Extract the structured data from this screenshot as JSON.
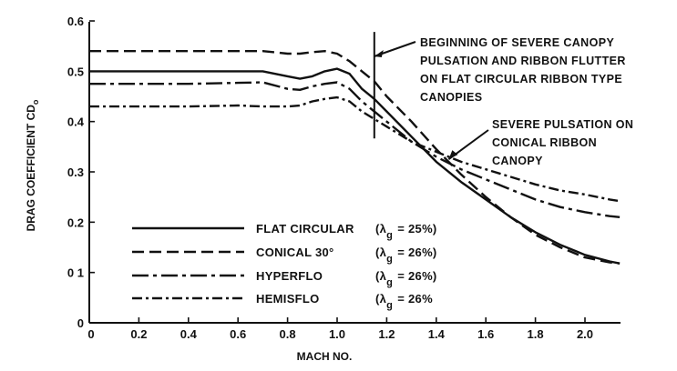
{
  "chart_data": {
    "type": "line",
    "xlabel": "MACH NO.",
    "ylabel": "DRAG COEFFICIENT CD",
    "ylabel_subscript": "o",
    "xlim": [
      0,
      2.15
    ],
    "ylim": [
      0,
      0.6
    ],
    "x_ticks": [
      "0",
      "0.2",
      "0.4",
      "0.6",
      "0.8",
      "1.0",
      "1.2",
      "1.4",
      "1.6",
      "1.8",
      "2.0"
    ],
    "y_ticks": [
      "0",
      "0 1",
      "0.2",
      "0.3",
      "0.4",
      "0.5",
      "0.6"
    ],
    "grid": false,
    "legend_position": "center-left",
    "series": [
      {
        "name": "FLAT CIRCULAR",
        "lambda_text": "= 25%)",
        "lambda_open": "(",
        "dash": "solid",
        "x": [
          0,
          0.2,
          0.4,
          0.6,
          0.7,
          0.8,
          0.85,
          0.9,
          0.95,
          1.0,
          1.05,
          1.1,
          1.15,
          1.2,
          1.3,
          1.4,
          1.5,
          1.6,
          1.7,
          1.8,
          1.9,
          2.0,
          2.1,
          2.14
        ],
        "y": [
          0.5,
          0.5,
          0.5,
          0.5,
          0.5,
          0.49,
          0.485,
          0.49,
          0.5,
          0.505,
          0.495,
          0.465,
          0.445,
          0.42,
          0.37,
          0.32,
          0.28,
          0.245,
          0.21,
          0.18,
          0.155,
          0.135,
          0.122,
          0.118
        ]
      },
      {
        "name": "CONICAL 30°",
        "lambda_text": "= 26%)",
        "lambda_open": "(",
        "dash": "long-dash",
        "x": [
          0,
          0.2,
          0.4,
          0.6,
          0.7,
          0.8,
          0.85,
          0.9,
          0.95,
          1.0,
          1.05,
          1.1,
          1.15,
          1.2,
          1.3,
          1.4,
          1.5,
          1.6,
          1.7,
          1.8,
          1.9,
          2.0,
          2.1,
          2.14
        ],
        "y": [
          0.54,
          0.54,
          0.54,
          0.54,
          0.54,
          0.535,
          0.535,
          0.538,
          0.54,
          0.535,
          0.52,
          0.5,
          0.48,
          0.45,
          0.4,
          0.345,
          0.295,
          0.25,
          0.21,
          0.175,
          0.15,
          0.13,
          0.12,
          0.118
        ]
      },
      {
        "name": "HYPERFLO",
        "lambda_text": "= 26%)",
        "lambda_open": "(",
        "dash": "dash-dot-long",
        "x": [
          0,
          0.2,
          0.4,
          0.6,
          0.7,
          0.8,
          0.85,
          0.9,
          0.95,
          1.0,
          1.05,
          1.1,
          1.15,
          1.2,
          1.3,
          1.4,
          1.5,
          1.6,
          1.7,
          1.8,
          1.9,
          2.0,
          2.1,
          2.14
        ],
        "y": [
          0.475,
          0.475,
          0.475,
          0.477,
          0.478,
          0.465,
          0.463,
          0.47,
          0.475,
          0.478,
          0.465,
          0.44,
          0.42,
          0.4,
          0.36,
          0.33,
          0.305,
          0.285,
          0.265,
          0.245,
          0.23,
          0.22,
          0.212,
          0.21
        ]
      },
      {
        "name": "HEMISFLO",
        "lambda_text": "= 26%",
        "lambda_open": "(",
        "dash": "dash-dot",
        "x": [
          0,
          0.2,
          0.4,
          0.6,
          0.7,
          0.8,
          0.85,
          0.9,
          0.95,
          1.0,
          1.05,
          1.1,
          1.15,
          1.2,
          1.3,
          1.4,
          1.5,
          1.6,
          1.7,
          1.8,
          1.9,
          2.0,
          2.1,
          2.14
        ],
        "y": [
          0.43,
          0.43,
          0.43,
          0.432,
          0.43,
          0.43,
          0.432,
          0.44,
          0.445,
          0.448,
          0.44,
          0.42,
          0.405,
          0.39,
          0.36,
          0.34,
          0.32,
          0.305,
          0.29,
          0.275,
          0.263,
          0.255,
          0.245,
          0.242
        ]
      }
    ],
    "lambda_symbol": "λ",
    "lambda_subscript": "g",
    "annotations": [
      {
        "name": "pulsation-flutter",
        "lines": [
          "BEGINNING OF SEVERE CANOPY",
          "PULSATION AND RIBBON FLUTTER",
          "ON FLAT CIRCULAR RIBBON TYPE",
          "CANOPIES"
        ],
        "marker_x": 1.15,
        "marker_y_range": [
          0.37,
          0.56
        ]
      },
      {
        "name": "conical-pulsation",
        "lines": [
          "SEVERE PULSATION ON",
          "CONICAL RIBBON",
          "CANOPY"
        ],
        "target": [
          1.45,
          0.325
        ]
      }
    ]
  }
}
